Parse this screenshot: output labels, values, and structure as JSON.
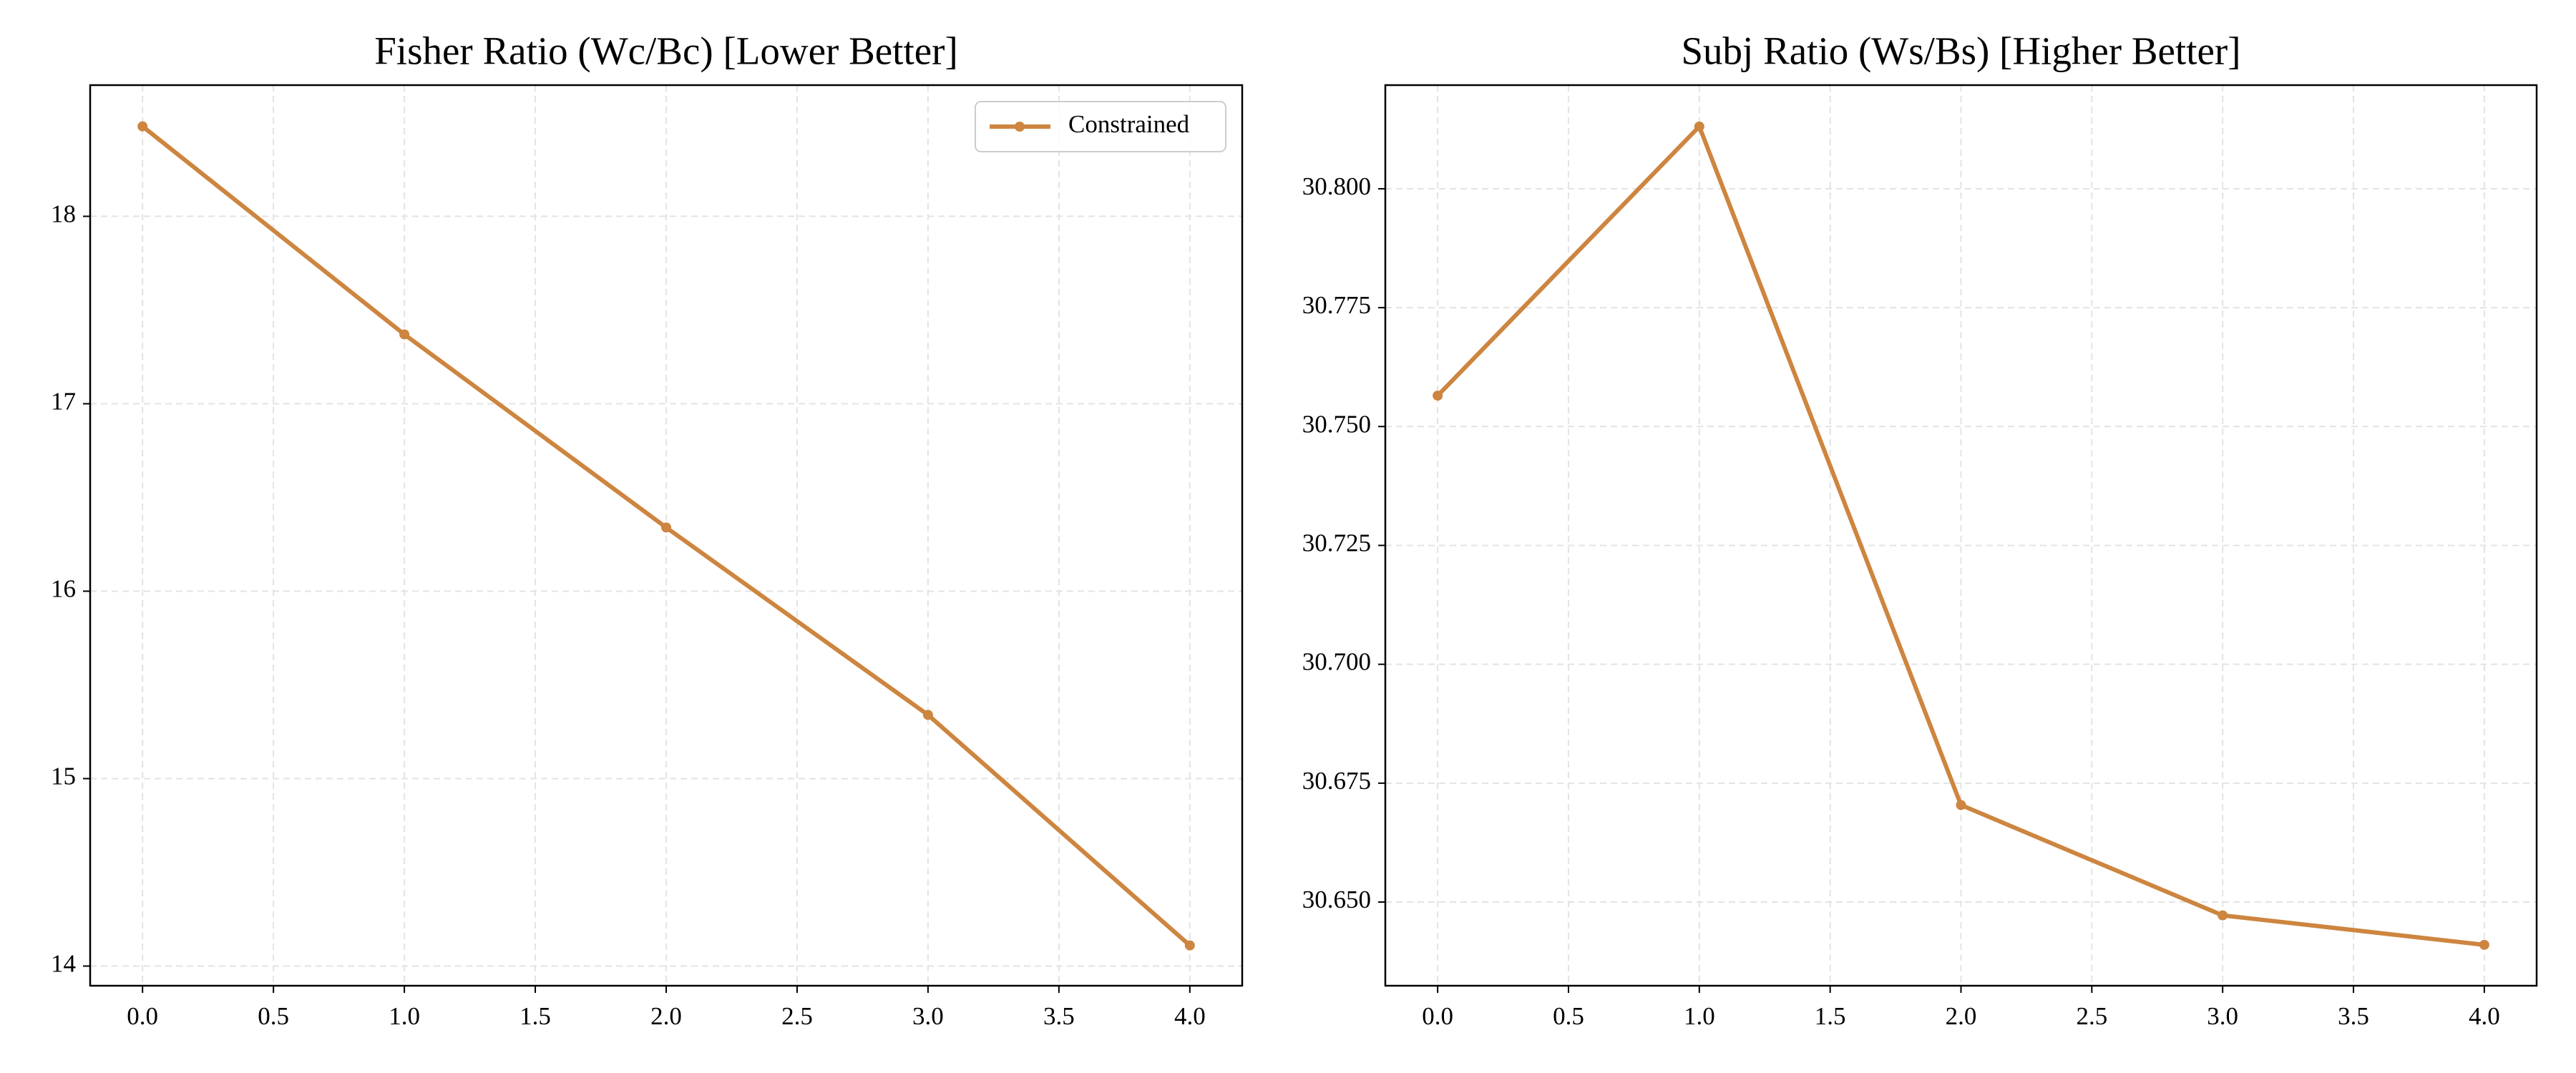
{
  "chart_data": [
    {
      "type": "line",
      "title": "Fisher Ratio (Wc/Bc) [Lower Better]",
      "x": [
        0,
        1,
        2,
        3,
        4
      ],
      "series": [
        {
          "name": "Constrained",
          "color": "#cd853f",
          "values": [
            18.48,
            17.37,
            16.34,
            15.34,
            14.11
          ]
        }
      ],
      "xlim": [
        -0.2,
        4.2
      ],
      "xticks": [
        {
          "value": 0,
          "label": "0.0"
        },
        {
          "value": 0.5,
          "label": "0.5"
        },
        {
          "value": 1,
          "label": "1.0"
        },
        {
          "value": 1.5,
          "label": "1.5"
        },
        {
          "value": 2,
          "label": "2.0"
        },
        {
          "value": 2.5,
          "label": "2.5"
        },
        {
          "value": 3,
          "label": "3.0"
        },
        {
          "value": 3.5,
          "label": "3.5"
        },
        {
          "value": 4,
          "label": "4.0"
        }
      ],
      "ylim": [
        13.895,
        18.7
      ],
      "yticks": [
        14,
        15,
        16,
        17,
        18
      ],
      "grid": true,
      "legend": "upper-right"
    },
    {
      "type": "line",
      "title": "Subj Ratio (Ws/Bs) [Higher Better]",
      "x": [
        0,
        1,
        2,
        3,
        4
      ],
      "series": [
        {
          "color": "#cd853f",
          "values": [
            30.7565,
            30.8131,
            30.6704,
            30.6472,
            30.641
          ]
        }
      ],
      "xlim": [
        -0.2,
        4.2
      ],
      "xticks": [
        {
          "value": 0,
          "label": "0.0"
        },
        {
          "value": 0.5,
          "label": "0.5"
        },
        {
          "value": 1,
          "label": "1.0"
        },
        {
          "value": 1.5,
          "label": "1.5"
        },
        {
          "value": 2,
          "label": "2.0"
        },
        {
          "value": 2.5,
          "label": "2.5"
        },
        {
          "value": 3,
          "label": "3.0"
        },
        {
          "value": 3.5,
          "label": "3.5"
        },
        {
          "value": 4,
          "label": "4.0"
        }
      ],
      "ylim": [
        30.6324,
        30.8218
      ],
      "yticks": [
        {
          "value": 30.65,
          "label": "30.650"
        },
        {
          "value": 30.675,
          "label": "30.675"
        },
        {
          "value": 30.7,
          "label": "30.700"
        },
        {
          "value": 30.725,
          "label": "30.725"
        },
        {
          "value": 30.75,
          "label": "30.750"
        },
        {
          "value": 30.775,
          "label": "30.775"
        },
        {
          "value": 30.8,
          "label": "30.800"
        }
      ],
      "grid": true
    }
  ]
}
